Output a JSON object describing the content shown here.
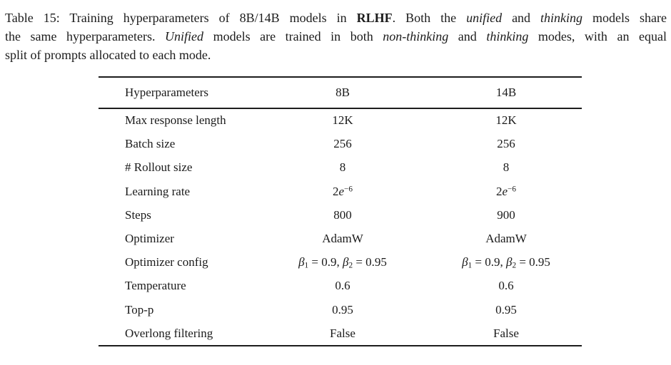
{
  "caption": {
    "lines": [
      {
        "runs": [
          {
            "t": "Table 15: Training hyperparameters of 8B/14B models in "
          },
          {
            "t": "RLHF",
            "style": "b"
          },
          {
            "t": ". Both the "
          },
          {
            "t": "unified",
            "style": "i"
          },
          {
            "t": " and "
          },
          {
            "t": "thinking",
            "style": "i"
          },
          {
            "t": " models share"
          }
        ]
      },
      {
        "runs": [
          {
            "t": "the same hyperparameters. "
          },
          {
            "t": "Unified",
            "style": "i"
          },
          {
            "t": " models are trained in both "
          },
          {
            "t": "non-thinking",
            "style": "i"
          },
          {
            "t": " and "
          },
          {
            "t": "thinking",
            "style": "i"
          },
          {
            "t": " modes, with an equal"
          }
        ]
      },
      {
        "runs": [
          {
            "t": "split of prompts allocated to each mode."
          }
        ]
      }
    ]
  },
  "table": {
    "headers": [
      "Hyperparameters",
      "8B",
      "14B"
    ],
    "rows": [
      {
        "label": "Max response length",
        "v8b": [
          {
            "t": "12K"
          }
        ],
        "v14b": [
          {
            "t": "12K"
          }
        ]
      },
      {
        "label": "Batch size",
        "v8b": [
          {
            "t": "256"
          }
        ],
        "v14b": [
          {
            "t": "256"
          }
        ]
      },
      {
        "label": "# Rollout size",
        "v8b": [
          {
            "t": "8"
          }
        ],
        "v14b": [
          {
            "t": "8"
          }
        ]
      },
      {
        "label": "Learning rate",
        "v8b": [
          {
            "t": "2"
          },
          {
            "t": "e",
            "style": "i"
          },
          {
            "t": "−6",
            "style": "sup"
          }
        ],
        "v14b": [
          {
            "t": "2"
          },
          {
            "t": "e",
            "style": "i"
          },
          {
            "t": "−6",
            "style": "sup"
          }
        ]
      },
      {
        "label": "Steps",
        "v8b": [
          {
            "t": "800"
          }
        ],
        "v14b": [
          {
            "t": "900"
          }
        ]
      },
      {
        "label": "Optimizer",
        "v8b": [
          {
            "t": "AdamW"
          }
        ],
        "v14b": [
          {
            "t": "AdamW"
          }
        ]
      },
      {
        "label": "Optimizer config",
        "v8b": [
          {
            "t": "β",
            "style": "i"
          },
          {
            "t": "1",
            "style": "sub"
          },
          {
            "t": " = 0.9, "
          },
          {
            "t": "β",
            "style": "i"
          },
          {
            "t": "2",
            "style": "sub"
          },
          {
            "t": " = 0.95"
          }
        ],
        "v14b": [
          {
            "t": "β",
            "style": "i"
          },
          {
            "t": "1",
            "style": "sub"
          },
          {
            "t": " = 0.9, "
          },
          {
            "t": "β",
            "style": "i"
          },
          {
            "t": "2",
            "style": "sub"
          },
          {
            "t": " = 0.95"
          }
        ]
      },
      {
        "label": "Temperature",
        "v8b": [
          {
            "t": "0.6"
          }
        ],
        "v14b": [
          {
            "t": "0.6"
          }
        ]
      },
      {
        "label": "Top-p",
        "v8b": [
          {
            "t": "0.95"
          }
        ],
        "v14b": [
          {
            "t": "0.95"
          }
        ]
      },
      {
        "label": "Overlong filtering",
        "v8b": [
          {
            "t": "False"
          }
        ],
        "v14b": [
          {
            "t": "False"
          }
        ]
      }
    ]
  }
}
